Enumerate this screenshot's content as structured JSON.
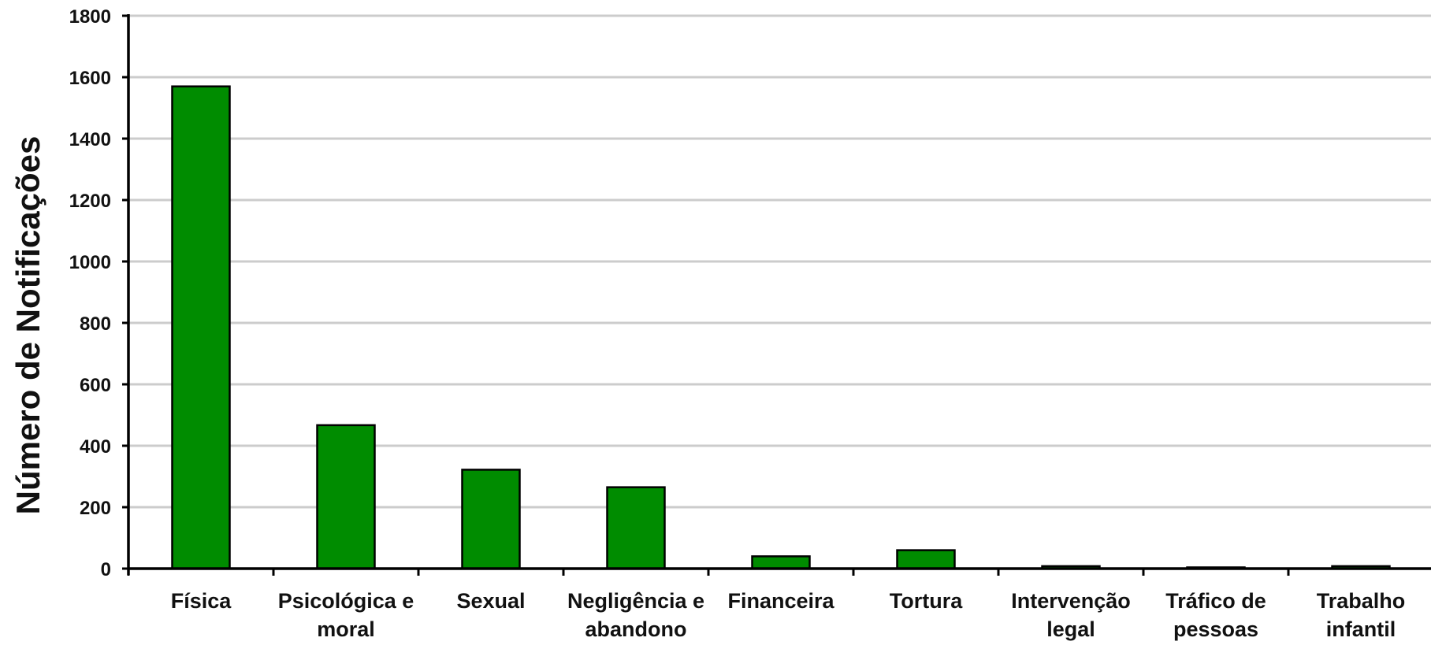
{
  "chart_data": {
    "type": "bar",
    "title": "",
    "xlabel": "",
    "ylabel": "Número de Notificações",
    "ylim": [
      0,
      1800
    ],
    "yticks": [
      0,
      200,
      400,
      600,
      800,
      1000,
      1200,
      1400,
      1600,
      1800
    ],
    "grid": true,
    "legend": "none",
    "categories": [
      [
        "Física"
      ],
      [
        "Psicológica e",
        "moral"
      ],
      [
        "Sexual"
      ],
      [
        "Negligência e",
        "abandono"
      ],
      [
        "Financeira"
      ],
      [
        "Tortura"
      ],
      [
        "Intervenção",
        "legal"
      ],
      [
        "Tráfico de",
        "pessoas"
      ],
      [
        "Trabalho",
        "infantil"
      ]
    ],
    "values": [
      1570,
      467,
      322,
      265,
      40,
      60,
      8,
      4,
      8
    ],
    "colors": {
      "bar": "#008c00",
      "bar_border": "#000000",
      "grid": "#cccccc",
      "axis": "#000000"
    }
  }
}
